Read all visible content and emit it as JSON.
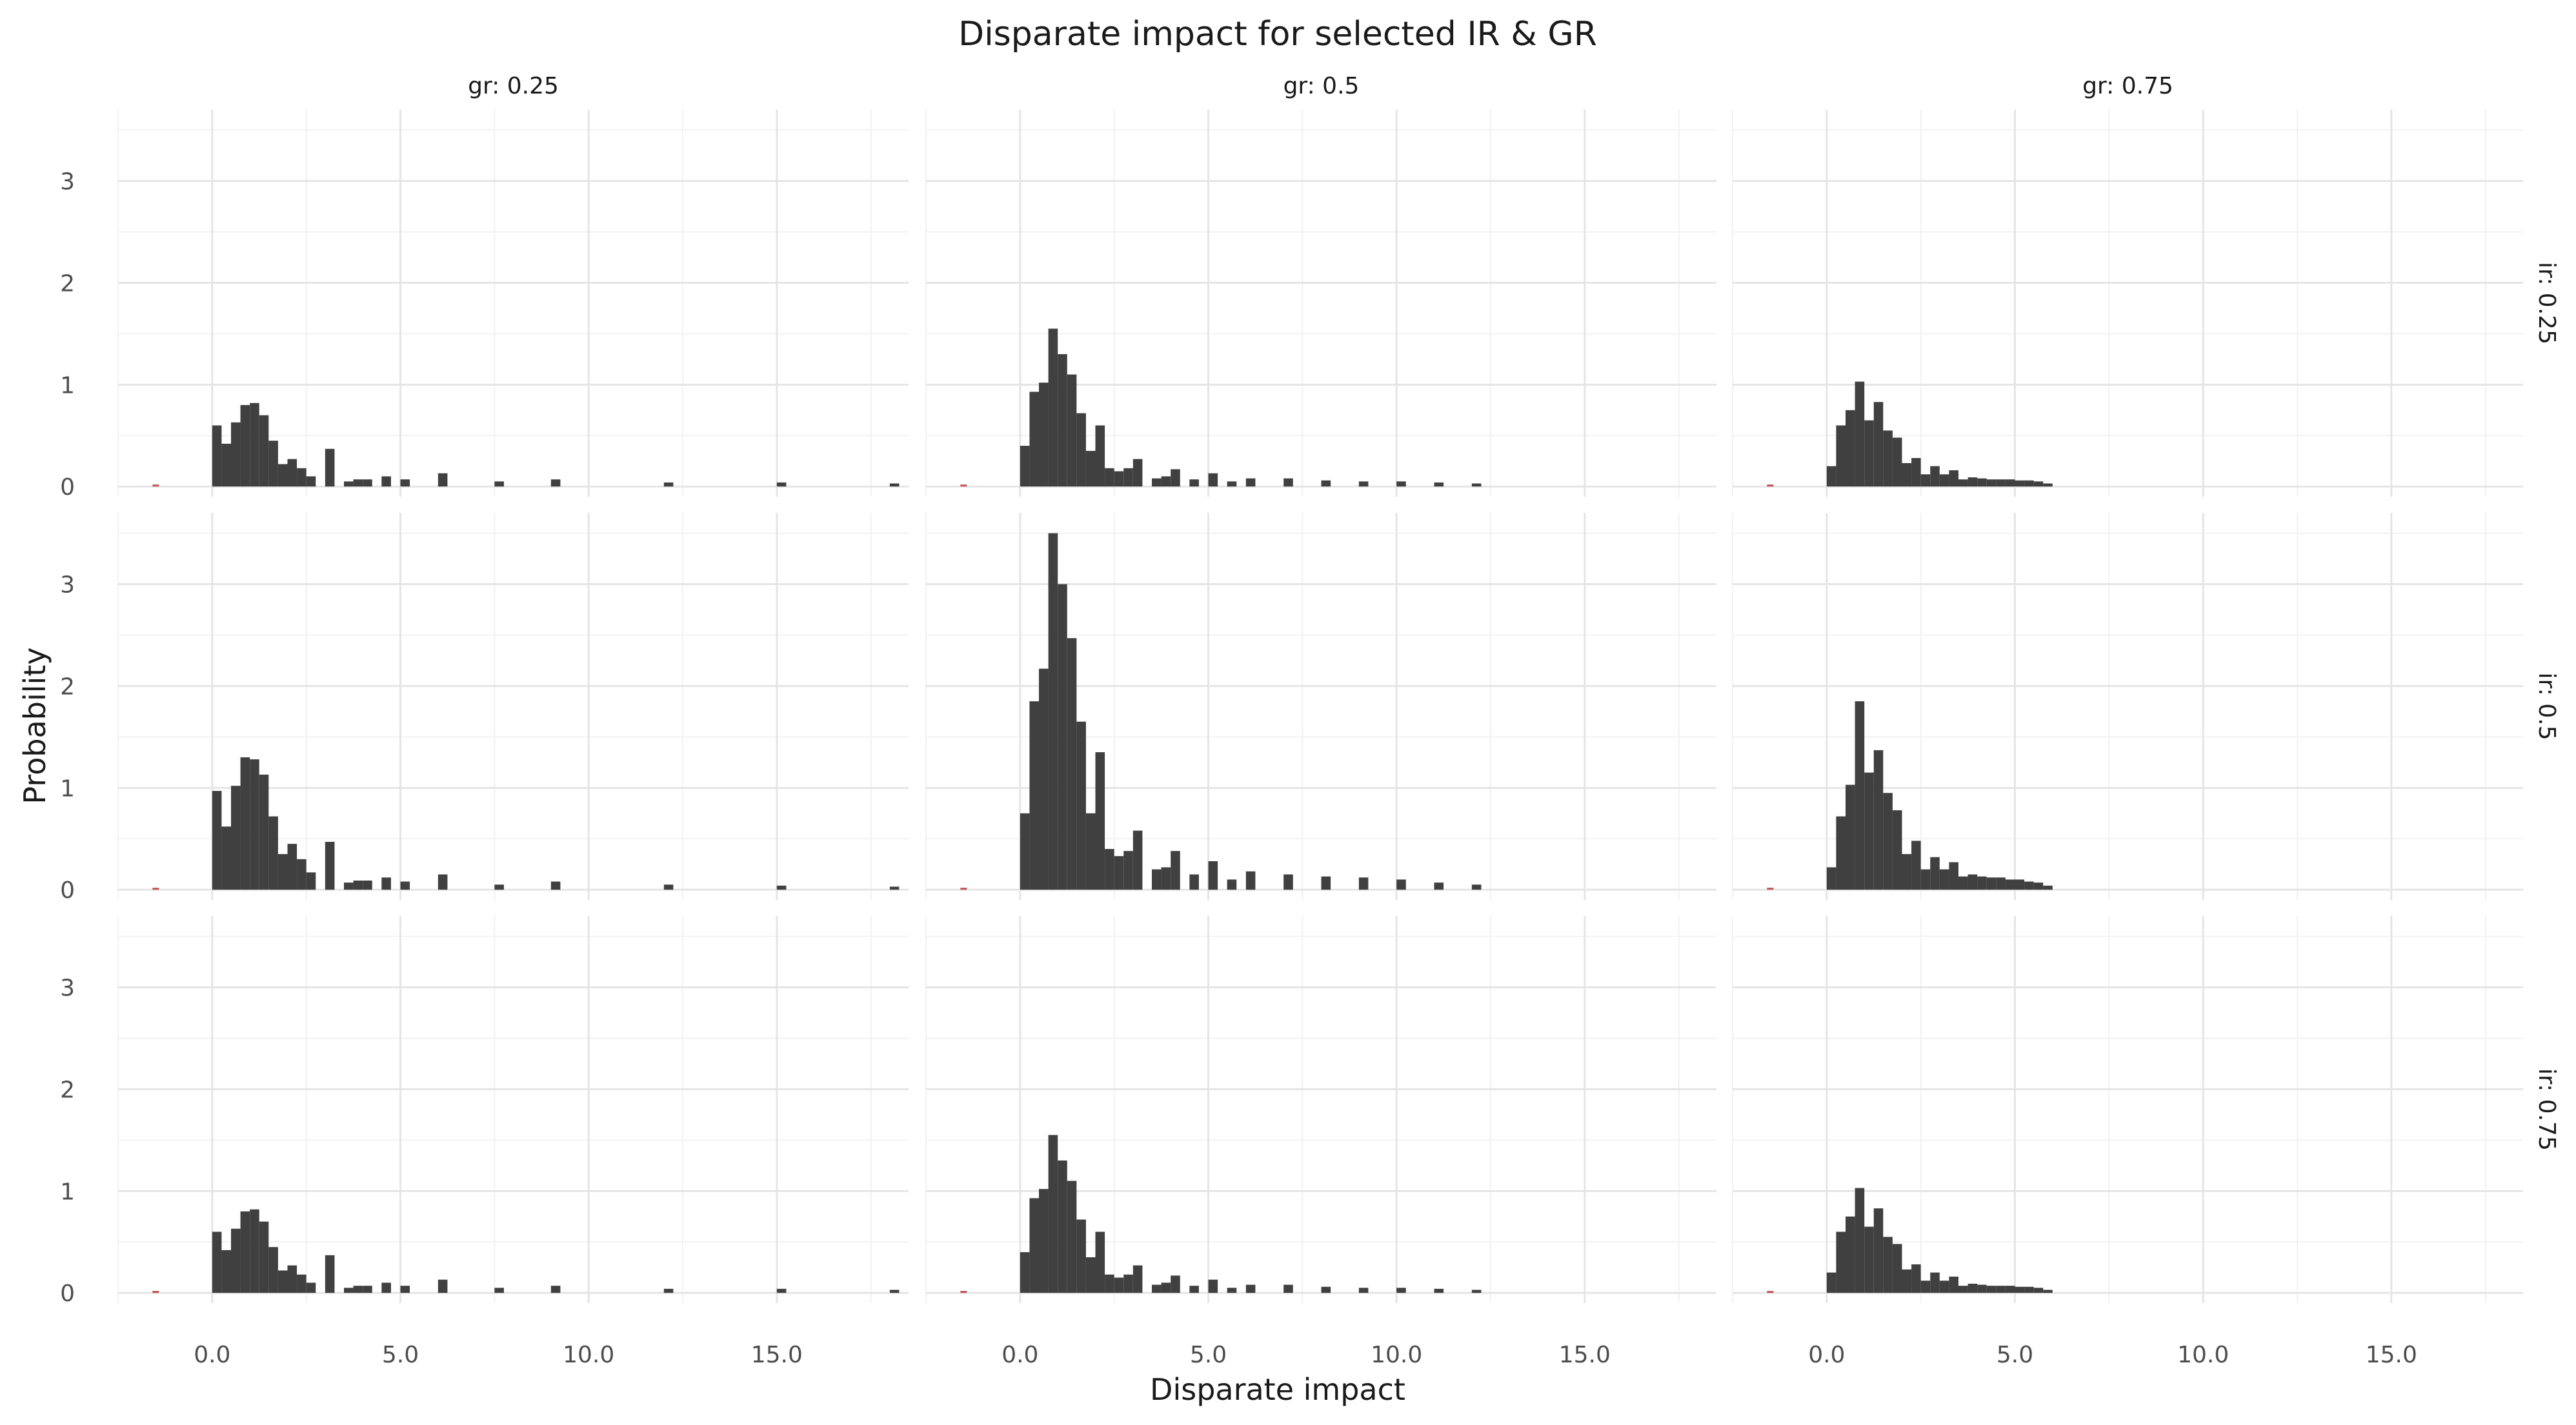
{
  "chart_data": {
    "type": "bar",
    "title": "Disparate impact for selected IR & GR",
    "xlabel": "Disparate impact",
    "ylabel": "Probability",
    "xlim": [
      -2.5,
      18.5
    ],
    "ylim": [
      -0.1,
      3.7
    ],
    "x_ticks": [
      "0.0",
      "5.0",
      "10.0",
      "15.0"
    ],
    "y_ticks": [
      "0",
      "1",
      "2",
      "3"
    ],
    "grid": true,
    "bin_width": 0.25,
    "col_facets": [
      "gr: 0.25",
      "gr: 0.5",
      "gr: 0.75"
    ],
    "row_facets": [
      "ir: 0.25",
      "ir: 0.5",
      "ir: 0.75"
    ],
    "colors": {
      "bar": "#404040",
      "negative_mark": "#c0504d",
      "grid_major": "#e5e5e5",
      "grid_minor": "#f2f2f2",
      "text": "#4d4d4d"
    },
    "panels": [
      {
        "row": "ir: 0.25",
        "col": "gr: 0.25",
        "negative_mark_x": -1.5,
        "bins": [
          [
            0.0,
            0.6
          ],
          [
            0.25,
            0.42
          ],
          [
            0.5,
            0.63
          ],
          [
            0.75,
            0.8
          ],
          [
            1.0,
            0.82
          ],
          [
            1.25,
            0.7
          ],
          [
            1.5,
            0.45
          ],
          [
            1.75,
            0.22
          ],
          [
            2.0,
            0.27
          ],
          [
            2.25,
            0.18
          ],
          [
            2.5,
            0.1
          ],
          [
            3.0,
            0.37
          ],
          [
            3.5,
            0.05
          ],
          [
            3.75,
            0.07
          ],
          [
            4.0,
            0.07
          ],
          [
            4.5,
            0.1
          ],
          [
            5.0,
            0.07
          ],
          [
            6.0,
            0.13
          ],
          [
            7.5,
            0.05
          ],
          [
            9.0,
            0.07
          ],
          [
            12.0,
            0.04
          ],
          [
            15.0,
            0.04
          ],
          [
            18.0,
            0.03
          ]
        ]
      },
      {
        "row": "ir: 0.25",
        "col": "gr: 0.5",
        "negative_mark_x": -1.5,
        "bins": [
          [
            0.0,
            0.4
          ],
          [
            0.25,
            0.93
          ],
          [
            0.5,
            1.02
          ],
          [
            0.75,
            1.55
          ],
          [
            1.0,
            1.3
          ],
          [
            1.25,
            1.1
          ],
          [
            1.5,
            0.72
          ],
          [
            1.75,
            0.35
          ],
          [
            2.0,
            0.6
          ],
          [
            2.25,
            0.18
          ],
          [
            2.5,
            0.15
          ],
          [
            2.75,
            0.18
          ],
          [
            3.0,
            0.27
          ],
          [
            3.5,
            0.08
          ],
          [
            3.75,
            0.1
          ],
          [
            4.0,
            0.17
          ],
          [
            4.5,
            0.07
          ],
          [
            5.0,
            0.13
          ],
          [
            5.5,
            0.05
          ],
          [
            6.0,
            0.08
          ],
          [
            7.0,
            0.08
          ],
          [
            8.0,
            0.06
          ],
          [
            9.0,
            0.05
          ],
          [
            10.0,
            0.05
          ],
          [
            11.0,
            0.04
          ],
          [
            12.0,
            0.03
          ]
        ]
      },
      {
        "row": "ir: 0.25",
        "col": "gr: 0.75",
        "negative_mark_x": -1.5,
        "bins": [
          [
            0.0,
            0.2
          ],
          [
            0.25,
            0.6
          ],
          [
            0.5,
            0.75
          ],
          [
            0.75,
            1.03
          ],
          [
            1.0,
            0.65
          ],
          [
            1.25,
            0.83
          ],
          [
            1.5,
            0.55
          ],
          [
            1.75,
            0.48
          ],
          [
            2.0,
            0.23
          ],
          [
            2.25,
            0.28
          ],
          [
            2.5,
            0.12
          ],
          [
            2.75,
            0.2
          ],
          [
            3.0,
            0.12
          ],
          [
            3.25,
            0.16
          ],
          [
            3.5,
            0.07
          ],
          [
            3.75,
            0.09
          ],
          [
            4.0,
            0.08
          ],
          [
            4.25,
            0.07
          ],
          [
            4.5,
            0.07
          ],
          [
            4.75,
            0.07
          ],
          [
            5.0,
            0.06
          ],
          [
            5.25,
            0.06
          ],
          [
            5.5,
            0.05
          ],
          [
            5.75,
            0.03
          ]
        ]
      },
      {
        "row": "ir: 0.5",
        "col": "gr: 0.25",
        "negative_mark_x": -1.5,
        "bins": [
          [
            0.0,
            0.97
          ],
          [
            0.25,
            0.62
          ],
          [
            0.5,
            1.02
          ],
          [
            0.75,
            1.3
          ],
          [
            1.0,
            1.28
          ],
          [
            1.25,
            1.13
          ],
          [
            1.5,
            0.72
          ],
          [
            1.75,
            0.35
          ],
          [
            2.0,
            0.45
          ],
          [
            2.25,
            0.3
          ],
          [
            2.5,
            0.17
          ],
          [
            3.0,
            0.47
          ],
          [
            3.5,
            0.07
          ],
          [
            3.75,
            0.09
          ],
          [
            4.0,
            0.09
          ],
          [
            4.5,
            0.12
          ],
          [
            5.0,
            0.08
          ],
          [
            6.0,
            0.15
          ],
          [
            7.5,
            0.05
          ],
          [
            9.0,
            0.08
          ],
          [
            12.0,
            0.05
          ],
          [
            15.0,
            0.04
          ],
          [
            18.0,
            0.03
          ]
        ]
      },
      {
        "row": "ir: 0.5",
        "col": "gr: 0.5",
        "negative_mark_x": -1.5,
        "bins": [
          [
            0.0,
            0.75
          ],
          [
            0.25,
            1.85
          ],
          [
            0.5,
            2.17
          ],
          [
            0.75,
            3.5
          ],
          [
            1.0,
            3.0
          ],
          [
            1.25,
            2.47
          ],
          [
            1.5,
            1.65
          ],
          [
            1.75,
            0.75
          ],
          [
            2.0,
            1.35
          ],
          [
            2.25,
            0.4
          ],
          [
            2.5,
            0.33
          ],
          [
            2.75,
            0.38
          ],
          [
            3.0,
            0.58
          ],
          [
            3.5,
            0.2
          ],
          [
            3.75,
            0.22
          ],
          [
            4.0,
            0.38
          ],
          [
            4.5,
            0.15
          ],
          [
            5.0,
            0.28
          ],
          [
            5.5,
            0.1
          ],
          [
            6.0,
            0.18
          ],
          [
            7.0,
            0.15
          ],
          [
            8.0,
            0.13
          ],
          [
            9.0,
            0.12
          ],
          [
            10.0,
            0.1
          ],
          [
            11.0,
            0.07
          ],
          [
            12.0,
            0.05
          ]
        ]
      },
      {
        "row": "ir: 0.5",
        "col": "gr: 0.75",
        "negative_mark_x": -1.5,
        "bins": [
          [
            0.0,
            0.22
          ],
          [
            0.25,
            0.72
          ],
          [
            0.5,
            1.03
          ],
          [
            0.75,
            1.85
          ],
          [
            1.0,
            1.15
          ],
          [
            1.25,
            1.37
          ],
          [
            1.5,
            0.95
          ],
          [
            1.75,
            0.78
          ],
          [
            2.0,
            0.35
          ],
          [
            2.25,
            0.48
          ],
          [
            2.5,
            0.2
          ],
          [
            2.75,
            0.32
          ],
          [
            3.0,
            0.2
          ],
          [
            3.25,
            0.27
          ],
          [
            3.5,
            0.13
          ],
          [
            3.75,
            0.15
          ],
          [
            4.0,
            0.13
          ],
          [
            4.25,
            0.12
          ],
          [
            4.5,
            0.12
          ],
          [
            4.75,
            0.1
          ],
          [
            5.0,
            0.1
          ],
          [
            5.25,
            0.08
          ],
          [
            5.5,
            0.07
          ],
          [
            5.75,
            0.04
          ]
        ]
      },
      {
        "row": "ir: 0.75",
        "col": "gr: 0.25",
        "negative_mark_x": -1.5,
        "bins": [
          [
            0.0,
            0.6
          ],
          [
            0.25,
            0.42
          ],
          [
            0.5,
            0.63
          ],
          [
            0.75,
            0.8
          ],
          [
            1.0,
            0.82
          ],
          [
            1.25,
            0.7
          ],
          [
            1.5,
            0.45
          ],
          [
            1.75,
            0.22
          ],
          [
            2.0,
            0.27
          ],
          [
            2.25,
            0.18
          ],
          [
            2.5,
            0.1
          ],
          [
            3.0,
            0.37
          ],
          [
            3.5,
            0.05
          ],
          [
            3.75,
            0.07
          ],
          [
            4.0,
            0.07
          ],
          [
            4.5,
            0.1
          ],
          [
            5.0,
            0.07
          ],
          [
            6.0,
            0.13
          ],
          [
            7.5,
            0.05
          ],
          [
            9.0,
            0.07
          ],
          [
            12.0,
            0.04
          ],
          [
            15.0,
            0.04
          ],
          [
            18.0,
            0.03
          ]
        ]
      },
      {
        "row": "ir: 0.75",
        "col": "gr: 0.5",
        "negative_mark_x": -1.5,
        "bins": [
          [
            0.0,
            0.4
          ],
          [
            0.25,
            0.93
          ],
          [
            0.5,
            1.02
          ],
          [
            0.75,
            1.55
          ],
          [
            1.0,
            1.3
          ],
          [
            1.25,
            1.1
          ],
          [
            1.5,
            0.72
          ],
          [
            1.75,
            0.35
          ],
          [
            2.0,
            0.6
          ],
          [
            2.25,
            0.18
          ],
          [
            2.5,
            0.15
          ],
          [
            2.75,
            0.18
          ],
          [
            3.0,
            0.27
          ],
          [
            3.5,
            0.08
          ],
          [
            3.75,
            0.1
          ],
          [
            4.0,
            0.17
          ],
          [
            4.5,
            0.07
          ],
          [
            5.0,
            0.13
          ],
          [
            5.5,
            0.05
          ],
          [
            6.0,
            0.08
          ],
          [
            7.0,
            0.08
          ],
          [
            8.0,
            0.06
          ],
          [
            9.0,
            0.05
          ],
          [
            10.0,
            0.05
          ],
          [
            11.0,
            0.04
          ],
          [
            12.0,
            0.03
          ]
        ]
      },
      {
        "row": "ir: 0.75",
        "col": "gr: 0.75",
        "negative_mark_x": -1.5,
        "bins": [
          [
            0.0,
            0.2
          ],
          [
            0.25,
            0.6
          ],
          [
            0.5,
            0.75
          ],
          [
            0.75,
            1.03
          ],
          [
            1.0,
            0.65
          ],
          [
            1.25,
            0.83
          ],
          [
            1.5,
            0.55
          ],
          [
            1.75,
            0.48
          ],
          [
            2.0,
            0.23
          ],
          [
            2.25,
            0.28
          ],
          [
            2.5,
            0.12
          ],
          [
            2.75,
            0.2
          ],
          [
            3.0,
            0.12
          ],
          [
            3.25,
            0.16
          ],
          [
            3.5,
            0.07
          ],
          [
            3.75,
            0.09
          ],
          [
            4.0,
            0.08
          ],
          [
            4.25,
            0.07
          ],
          [
            4.5,
            0.07
          ],
          [
            4.75,
            0.07
          ],
          [
            5.0,
            0.06
          ],
          [
            5.25,
            0.06
          ],
          [
            5.5,
            0.05
          ],
          [
            5.75,
            0.03
          ]
        ]
      }
    ]
  }
}
